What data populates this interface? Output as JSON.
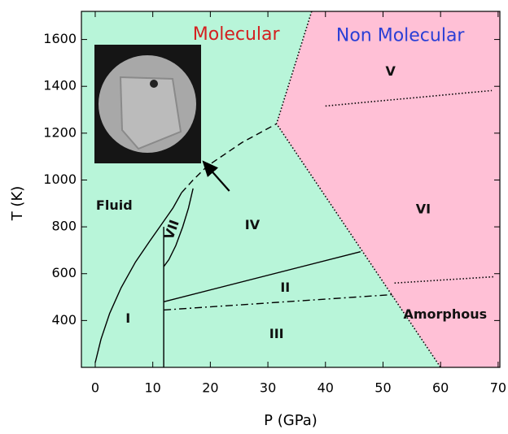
{
  "chart_data": {
    "type": "phase-diagram",
    "xlabel": "P (GPa)",
    "ylabel": "T (K)",
    "xlim": [
      -2.4,
      70.3
    ],
    "ylim": [
      200,
      1720
    ],
    "xticks": [
      0,
      10,
      20,
      30,
      40,
      50,
      60,
      70
    ],
    "yticks": [
      400,
      600,
      800,
      1000,
      1200,
      1400,
      1600
    ],
    "background": "#b8f5d9",
    "regions": [
      {
        "color": "#ffc0d6",
        "x": [
          37.6,
          31.5,
          60,
          70.3,
          70.3
        ],
        "y": [
          1720,
          1240,
          200,
          200,
          1720
        ]
      }
    ],
    "lines": [
      {
        "style": "solid",
        "x": [
          0,
          1,
          2.5,
          4.5,
          7,
          9.5,
          11.5,
          13.5,
          15
        ],
        "y": [
          220,
          320,
          430,
          540,
          650,
          740,
          810,
          880,
          946
        ]
      },
      {
        "style": "solid",
        "x": [
          11.9,
          11.9
        ],
        "y": [
          200,
          800
        ]
      },
      {
        "style": "solid",
        "x": [
          11.9,
          12.8,
          14,
          15.2,
          16.2,
          17
        ],
        "y": [
          630,
          660,
          720,
          800,
          880,
          964
        ]
      },
      {
        "style": "dashed",
        "x": [
          15,
          17,
          19.5,
          22.5,
          25.5,
          28.5,
          31.5
        ],
        "y": [
          946,
          1000,
          1060,
          1110,
          1160,
          1200,
          1240
        ]
      },
      {
        "style": "solid",
        "x": [
          11.9,
          46.1
        ],
        "y": [
          480,
          694
        ]
      },
      {
        "style": "dashdot",
        "x": [
          11.9,
          51.9
        ],
        "y": [
          445,
          511
        ]
      },
      {
        "style": "dotted",
        "x": [
          40,
          68.9
        ],
        "y": [
          1316,
          1382
        ]
      },
      {
        "style": "dotted",
        "x": [
          52,
          69.4
        ],
        "y": [
          560,
          587
        ]
      },
      {
        "style": "dotted",
        "x": [
          37.6,
          31.5,
          60
        ],
        "y": [
          1720,
          1240,
          200
        ]
      }
    ],
    "labels": [
      {
        "text": "Molecular",
        "x": 24.5,
        "y": 1620,
        "color": "#d42020"
      },
      {
        "text": "Non Molecular",
        "x": 53,
        "y": 1614,
        "color": "#2a3fd6"
      },
      {
        "text": "V",
        "x": 51.3,
        "y": 1462,
        "color": "#111111"
      },
      {
        "text": "VI",
        "x": 57,
        "y": 874,
        "color": "#111111"
      },
      {
        "text": "IV",
        "x": 27.3,
        "y": 805,
        "color": "#111111"
      },
      {
        "text": "II",
        "x": 33,
        "y": 538,
        "color": "#111111"
      },
      {
        "text": "III",
        "x": 31.5,
        "y": 341,
        "color": "#111111"
      },
      {
        "text": "I",
        "x": 5.7,
        "y": 407,
        "color": "#111111"
      },
      {
        "text": "Fluid",
        "x": 3.3,
        "y": 888,
        "color": "#111111"
      },
      {
        "text": "VII",
        "x": 13.4,
        "y": 787,
        "color": "#111111",
        "rotate": -70
      },
      {
        "text": "Amorphous",
        "x": 60.8,
        "y": 424,
        "color": "#111111"
      }
    ],
    "arrow": {
      "x": [
        23.3,
        18.8
      ],
      "y": [
        953,
        1078
      ]
    }
  }
}
